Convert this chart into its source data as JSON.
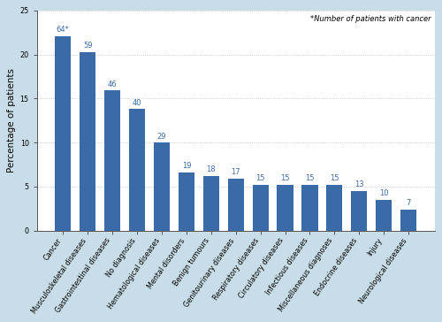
{
  "categories": [
    "Cancer",
    "Musculoskeletal diseases",
    "Gastrointestinal diseases",
    "No diagnosis",
    "Hematological diseases",
    "Mental disorders",
    "Benign tumours",
    "Genitourinary diseases",
    "Respiratory diseases",
    "Circulatory diseases",
    "Infectious diseases",
    "Miscellaneous diagnoses",
    "Endocrine diseases",
    "Injury",
    "Neurological diseases"
  ],
  "values": [
    22.1,
    20.3,
    15.9,
    13.8,
    10.0,
    6.6,
    6.2,
    5.9,
    5.2,
    5.2,
    5.2,
    5.2,
    4.5,
    3.5,
    2.4
  ],
  "labels": [
    "64*",
    "59",
    "46",
    "40",
    "29",
    "19",
    "18",
    "17",
    "15",
    "15",
    "15",
    "15",
    "13",
    "10",
    "7"
  ],
  "bar_color": "#3A6BA8",
  "ylabel": "Percentage of patients",
  "ylim": [
    0,
    25
  ],
  "yticks": [
    0,
    5,
    10,
    15,
    20,
    25
  ],
  "annotation": "*Number of patients with cancer",
  "background_color": "#C8DDE8",
  "plot_background": "#FFFFFF",
  "label_fontsize": 6.0,
  "tick_fontsize": 5.8,
  "ylabel_fontsize": 7.5
}
